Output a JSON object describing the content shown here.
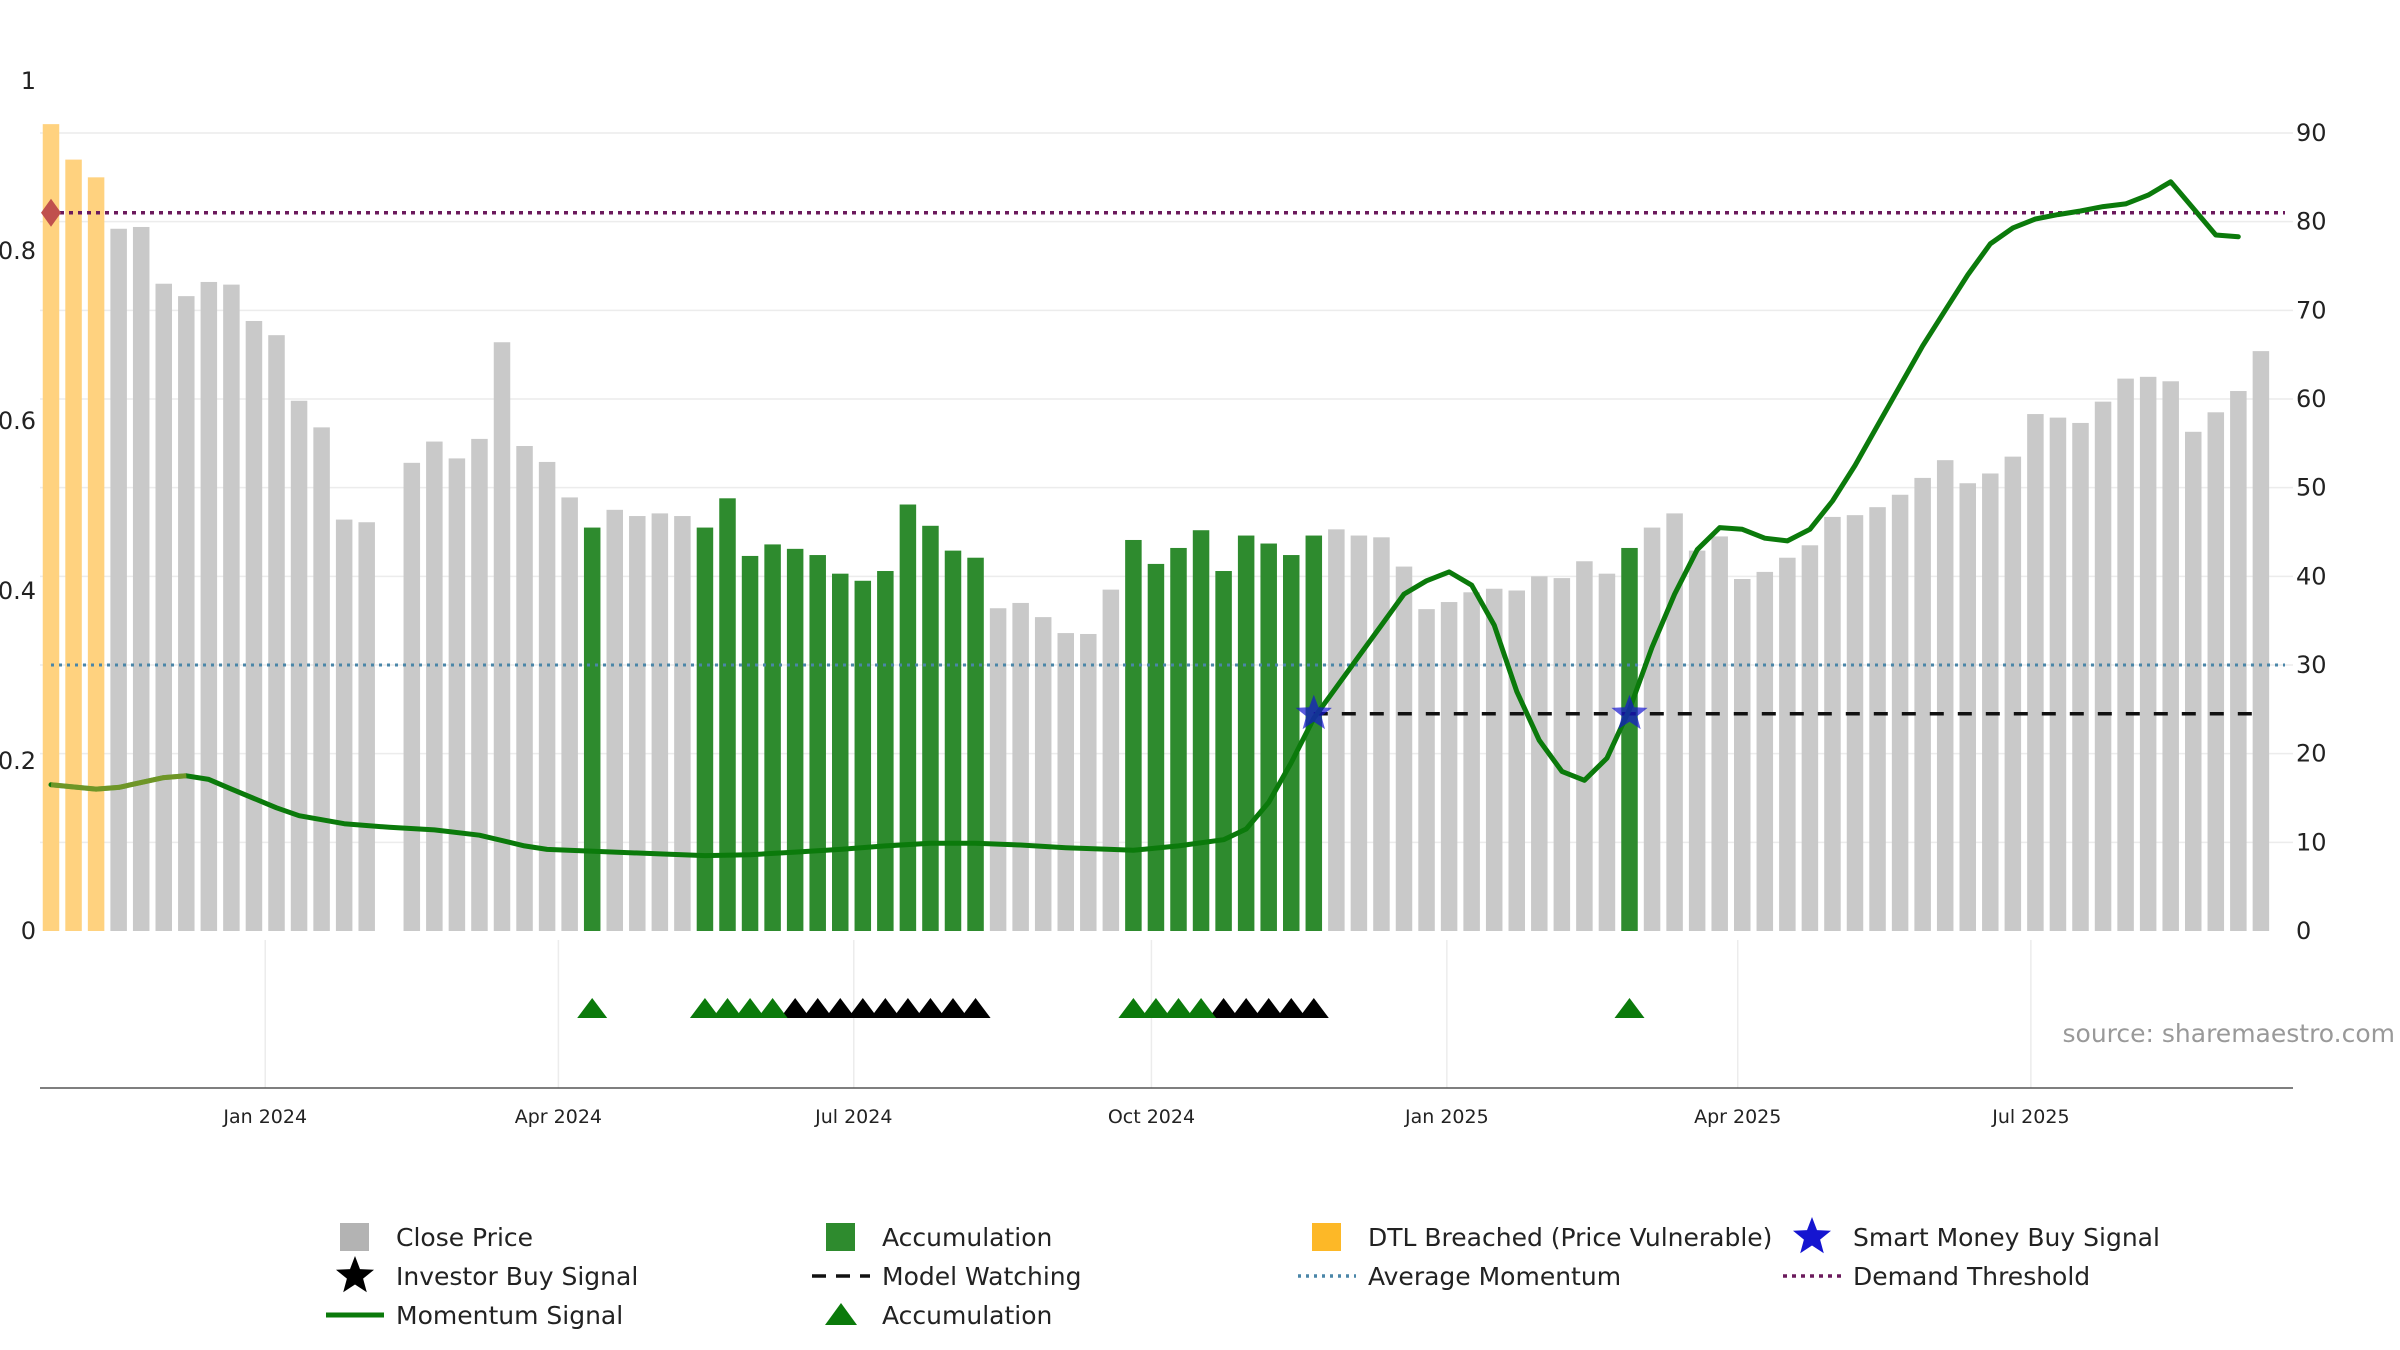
{
  "chart_data": {
    "type": "bar",
    "source": "source: sharemaestro.com",
    "y_left": {
      "ticks": [
        "0",
        "0.2",
        "0.4",
        "0.6",
        "0.8",
        "1"
      ],
      "range": [
        0,
        1
      ]
    },
    "y_right": {
      "ticks": [
        0,
        10,
        20,
        30,
        40,
        50,
        60,
        70,
        80,
        90
      ],
      "range": [
        0,
        90
      ]
    },
    "x_ticks": [
      {
        "label": "Jan 2024",
        "week": 9.5
      },
      {
        "label": "Apr 2024",
        "week": 22.5
      },
      {
        "label": "Jul 2024",
        "week": 35.6
      },
      {
        "label": "Oct 2024",
        "week": 48.8
      },
      {
        "label": "Jan 2025",
        "week": 61.9
      },
      {
        "label": "Apr 2025",
        "week": 74.8
      },
      {
        "label": "Jul 2025",
        "week": 87.8
      }
    ],
    "close_price": [
      91,
      87,
      85,
      79.2,
      79.4,
      73,
      71.6,
      73.2,
      72.9,
      68.8,
      67.2,
      59.8,
      56.8,
      46.4,
      46.1,
      null,
      52.8,
      55.2,
      53.3,
      55.5,
      66.4,
      54.7,
      52.9,
      48.9,
      45.5,
      47.5,
      46.8,
      47.1,
      46.8,
      45.5,
      48.8,
      42.3,
      43.6,
      43.1,
      42.4,
      40.3,
      39.5,
      40.6,
      48.1,
      45.7,
      42.9,
      42.1,
      36.4,
      37,
      35.4,
      33.6,
      33.5,
      38.5,
      44.1,
      41.4,
      43.2,
      45.2,
      40.6,
      44.6,
      43.7,
      42.4,
      44.6,
      45.3,
      44.6,
      44.4,
      41.1,
      36.3,
      37.1,
      38.2,
      38.6,
      38.4,
      40,
      39.8,
      41.7,
      40.3,
      43.2,
      45.5,
      47.1,
      42.9,
      44.5,
      39.7,
      40.5,
      42.1,
      43.5,
      46.7,
      46.9,
      47.8,
      49.2,
      51.1,
      53.1,
      50.5,
      51.6,
      53.5,
      58.3,
      57.9,
      57.3,
      59.7,
      62.3,
      62.5,
      62,
      56.3,
      58.5,
      60.9,
      65.4
    ],
    "bar_category": [
      "dtl",
      "dtl",
      "dtl",
      "close",
      "close",
      "close",
      "close",
      "close",
      "close",
      "close",
      "close",
      "close",
      "close",
      "close",
      "close",
      "none",
      "close",
      "close",
      "close",
      "close",
      "close",
      "close",
      "close",
      "close",
      "accumulation",
      "close",
      "close",
      "close",
      "close",
      "accumulation",
      "accumulation",
      "accumulation",
      "accumulation",
      "accumulation",
      "accumulation",
      "accumulation",
      "accumulation",
      "accumulation",
      "accumulation",
      "accumulation",
      "accumulation",
      "accumulation",
      "close",
      "close",
      "close",
      "close",
      "close",
      "close",
      "accumulation",
      "accumulation",
      "accumulation",
      "accumulation",
      "accumulation",
      "accumulation",
      "accumulation",
      "accumulation",
      "accumulation",
      "close",
      "close",
      "close",
      "close",
      "close",
      "close",
      "close",
      "close",
      "close",
      "close",
      "close",
      "close",
      "close",
      "accumulation",
      "close",
      "close",
      "close",
      "close",
      "close",
      "close",
      "close",
      "close",
      "close",
      "close",
      "close",
      "close",
      "close",
      "close",
      "close",
      "close",
      "close",
      "close",
      "close",
      "close",
      "close",
      "close",
      "close",
      "close",
      "close",
      "close",
      "close",
      "close"
    ],
    "momentum": [
      [
        0,
        16.5
      ],
      [
        2,
        16
      ],
      [
        3,
        16.2
      ],
      [
        5,
        17.3
      ],
      [
        6,
        17.5
      ],
      [
        7,
        17.1
      ],
      [
        8,
        16
      ],
      [
        10,
        13.9
      ],
      [
        11,
        13
      ],
      [
        13,
        12.1
      ],
      [
        15,
        11.7
      ],
      [
        17,
        11.4
      ],
      [
        19,
        10.8
      ],
      [
        21,
        9.6
      ],
      [
        22,
        9.2
      ],
      [
        25,
        8.9
      ],
      [
        27,
        8.7
      ],
      [
        29,
        8.5
      ],
      [
        31,
        8.6
      ],
      [
        33,
        8.9
      ],
      [
        35,
        9.2
      ],
      [
        37,
        9.6
      ],
      [
        39,
        9.9
      ],
      [
        41,
        9.9
      ],
      [
        43,
        9.7
      ],
      [
        45,
        9.4
      ],
      [
        47,
        9.2
      ],
      [
        48,
        9.1
      ],
      [
        50,
        9.6
      ],
      [
        52,
        10.3
      ],
      [
        53,
        11.5
      ],
      [
        54,
        14.5
      ],
      [
        55,
        19
      ],
      [
        56,
        24
      ],
      [
        57,
        27.5
      ],
      [
        58,
        31
      ],
      [
        59,
        34.5
      ],
      [
        60,
        38
      ],
      [
        61,
        39.5
      ],
      [
        62,
        40.5
      ],
      [
        63,
        39
      ],
      [
        64,
        34.5
      ],
      [
        65,
        27
      ],
      [
        66,
        21.5
      ],
      [
        67,
        18
      ],
      [
        68,
        17
      ],
      [
        69,
        19.5
      ],
      [
        70,
        25
      ],
      [
        71,
        32
      ],
      [
        72,
        38
      ],
      [
        73,
        43
      ],
      [
        74,
        45.5
      ],
      [
        75,
        45.3
      ],
      [
        76,
        44.3
      ],
      [
        77,
        44
      ],
      [
        78,
        45.3
      ],
      [
        79,
        48.5
      ],
      [
        80,
        52.5
      ],
      [
        81,
        57
      ],
      [
        82,
        61.5
      ],
      [
        83,
        66
      ],
      [
        84,
        70
      ],
      [
        85,
        74
      ],
      [
        86,
        77.5
      ],
      [
        87,
        79.3
      ],
      [
        88,
        80.3
      ],
      [
        89,
        80.8
      ],
      [
        90,
        81.2
      ],
      [
        91,
        81.7
      ],
      [
        92,
        82
      ],
      [
        93,
        83
      ],
      [
        94,
        84.5
      ],
      [
        95,
        81.5
      ],
      [
        96,
        78.5
      ],
      [
        97,
        78.3
      ]
    ],
    "momentum_faded_weeks": [
      [
        0,
        6
      ],
      [
        15,
        15.6
      ],
      [
        42,
        42.5
      ]
    ],
    "average_momentum": 30,
    "demand_threshold": 81,
    "model_watching": {
      "level": 24.5,
      "from_week": 56
    },
    "dtl_marker": {
      "week": 0,
      "value": 81
    },
    "smart_money_buy_signals": [
      {
        "week": 56,
        "value": 24.5
      },
      {
        "week": 70,
        "value": 24.5
      }
    ],
    "accumulation_triangles": [
      24,
      29,
      30,
      31,
      32,
      48,
      49,
      50,
      51,
      70
    ],
    "investor_buy_triangles": [
      33,
      34,
      35,
      36,
      37,
      38,
      39,
      40,
      41,
      52,
      53,
      54,
      55,
      56
    ],
    "colors": {
      "close": "#c9c9c9",
      "accumulation": "#2e8b2e",
      "dtl": "#ffd27f",
      "momentum": "#0b7a0b",
      "average_momentum": "#4a86a8",
      "demand_threshold": "#6b1a5c",
      "smart_money": "#1515d0",
      "model_watching": "#111111",
      "marker": "#c0504d"
    },
    "legend": [
      {
        "key": "close",
        "label": "Close Price"
      },
      {
        "key": "accumulation_bar",
        "label": "Accumulation"
      },
      {
        "key": "dtl",
        "label": "DTL Breached (Price Vulnerable)"
      },
      {
        "key": "smart_money",
        "label": "Smart Money Buy Signal"
      },
      {
        "key": "investor",
        "label": "Investor Buy Signal"
      },
      {
        "key": "model_watching",
        "label": "Model Watching"
      },
      {
        "key": "average_momentum",
        "label": "Average Momentum"
      },
      {
        "key": "demand_threshold",
        "label": "Demand Threshold"
      },
      {
        "key": "momentum",
        "label": "Momentum Signal"
      },
      {
        "key": "accumulation_tri",
        "label": "Accumulation"
      }
    ]
  }
}
